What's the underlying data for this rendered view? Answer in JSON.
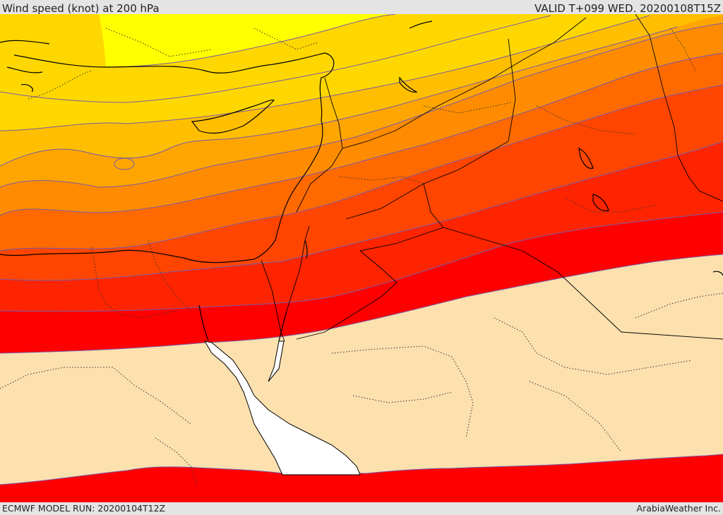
{
  "header": {
    "title": "Wind speed (knot) at 200 hPa",
    "valid": "VALID T+099 WED. 20200108T15Z"
  },
  "footer": {
    "model_run": "ECMWF MODEL RUN: 20200104T12Z",
    "provider": "ArabiaWeather Inc."
  },
  "map": {
    "palette": {
      "band_1": "#ffff00",
      "band_2": "#ffd700",
      "band_3": "#ffbf00",
      "band_4": "#ffa500",
      "band_5": "#ff8c00",
      "band_6": "#ff6a00",
      "band_7": "#ff4500",
      "band_8": "#ff2400",
      "band_9": "#ff0000",
      "calm": "#fce0ae",
      "sea": "#ffffff",
      "contour": "#7a5aa8",
      "coast": "#000000"
    }
  }
}
